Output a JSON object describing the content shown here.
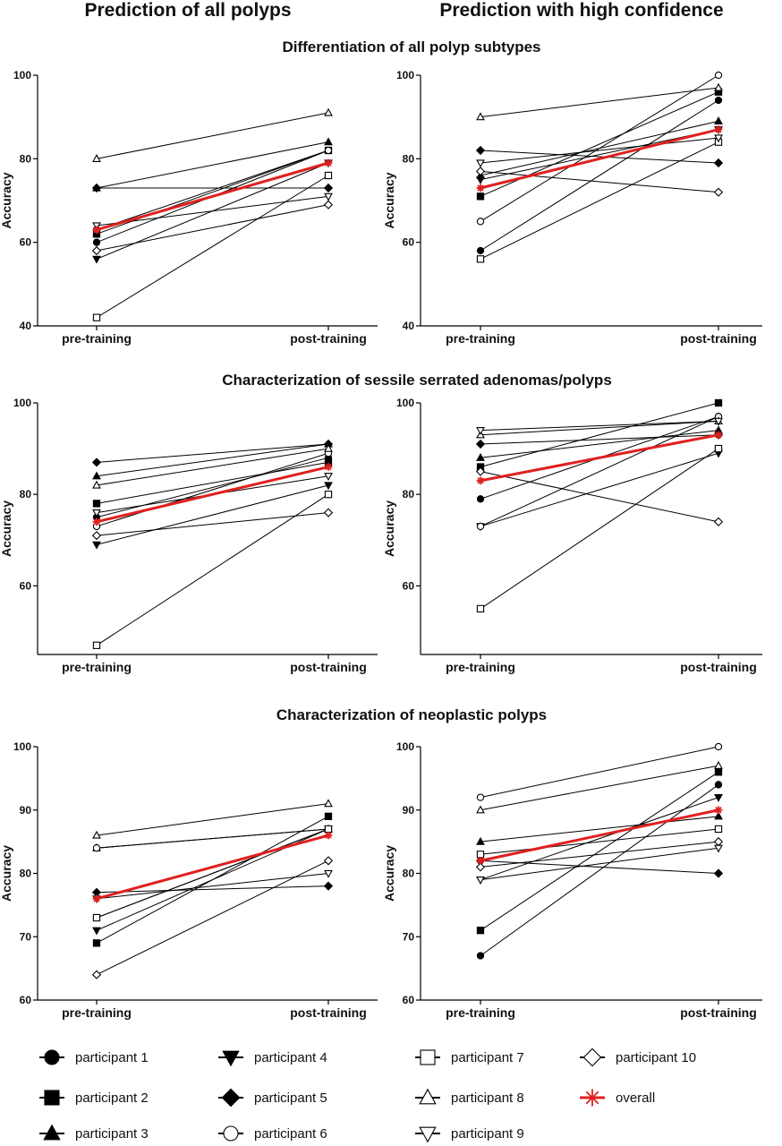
{
  "column_titles": [
    "Prediction of all polyps",
    "Prediction with high confidence"
  ],
  "row_titles": [
    "Differentiation of all polyp subtypes",
    "Characterization of sessile serrated adenomas/polyps",
    "Characterization of neoplastic polyps"
  ],
  "colors": {
    "participant": "#000000",
    "overall": "#e02020"
  },
  "legend": [
    {
      "name": "participant 1",
      "marker": "circle-filled"
    },
    {
      "name": "participant 2",
      "marker": "square-filled"
    },
    {
      "name": "participant 3",
      "marker": "triangle-up-filled"
    },
    {
      "name": "participant 4",
      "marker": "triangle-down-filled"
    },
    {
      "name": "participant 5",
      "marker": "diamond-filled"
    },
    {
      "name": "participant 6",
      "marker": "circle-open"
    },
    {
      "name": "participant 7",
      "marker": "square-open"
    },
    {
      "name": "participant 8",
      "marker": "triangle-up-open"
    },
    {
      "name": "participant 9",
      "marker": "triangle-down-open"
    },
    {
      "name": "participant 10",
      "marker": "diamond-open"
    },
    {
      "name": "overall",
      "marker": "asterisk-red"
    }
  ],
  "chart_data": [
    {
      "type": "line",
      "row": 0,
      "col": 0,
      "categories": [
        "pre-training",
        "post-training"
      ],
      "ylabel": "Accuracy",
      "ylim": [
        40,
        100
      ],
      "yticks": [
        40,
        60,
        80,
        100
      ],
      "series": [
        {
          "name": "participant 1",
          "values": [
            60,
            82
          ]
        },
        {
          "name": "participant 2",
          "values": [
            62,
            82
          ]
        },
        {
          "name": "participant 3",
          "values": [
            73,
            84
          ]
        },
        {
          "name": "participant 4",
          "values": [
            56,
            79
          ]
        },
        {
          "name": "participant 5",
          "values": [
            73,
            73
          ]
        },
        {
          "name": "participant 6",
          "values": [
            63,
            82
          ]
        },
        {
          "name": "participant 7",
          "values": [
            42,
            76
          ]
        },
        {
          "name": "participant 8",
          "values": [
            80,
            91
          ]
        },
        {
          "name": "participant 9",
          "values": [
            64,
            71
          ]
        },
        {
          "name": "participant 10",
          "values": [
            58,
            69
          ]
        },
        {
          "name": "overall",
          "values": [
            63,
            79
          ]
        }
      ]
    },
    {
      "type": "line",
      "row": 0,
      "col": 1,
      "categories": [
        "pre-training",
        "post-training"
      ],
      "ylabel": "Accuracy",
      "ylim": [
        40,
        100
      ],
      "yticks": [
        40,
        60,
        80,
        100
      ],
      "series": [
        {
          "name": "participant 1",
          "values": [
            58,
            94
          ]
        },
        {
          "name": "participant 2",
          "values": [
            71,
            96
          ]
        },
        {
          "name": "participant 3",
          "values": [
            76,
            89
          ]
        },
        {
          "name": "participant 4",
          "values": [
            75,
            87
          ]
        },
        {
          "name": "participant 5",
          "values": [
            82,
            79
          ]
        },
        {
          "name": "participant 6",
          "values": [
            65,
            100
          ]
        },
        {
          "name": "participant 7",
          "values": [
            56,
            84
          ]
        },
        {
          "name": "participant 8",
          "values": [
            90,
            97
          ]
        },
        {
          "name": "participant 9",
          "values": [
            79,
            85
          ]
        },
        {
          "name": "participant 10",
          "values": [
            77,
            72
          ]
        },
        {
          "name": "overall",
          "values": [
            73,
            87
          ]
        }
      ]
    },
    {
      "type": "line",
      "row": 1,
      "col": 0,
      "categories": [
        "pre-training",
        "post-training"
      ],
      "ylabel": "Accuracy",
      "ylim": [
        45,
        100
      ],
      "yticks": [
        60,
        80,
        100
      ],
      "series": [
        {
          "name": "participant 1",
          "values": [
            75,
            88
          ]
        },
        {
          "name": "participant 2",
          "values": [
            78,
            87
          ]
        },
        {
          "name": "participant 3",
          "values": [
            84,
            91
          ]
        },
        {
          "name": "participant 4",
          "values": [
            69,
            82
          ]
        },
        {
          "name": "participant 5",
          "values": [
            87,
            91
          ]
        },
        {
          "name": "participant 6",
          "values": [
            73,
            89
          ]
        },
        {
          "name": "participant 7",
          "values": [
            47,
            80
          ]
        },
        {
          "name": "participant 8",
          "values": [
            82,
            90
          ]
        },
        {
          "name": "participant 9",
          "values": [
            76,
            84
          ]
        },
        {
          "name": "participant 10",
          "values": [
            71,
            76
          ]
        },
        {
          "name": "overall",
          "values": [
            74,
            86
          ]
        }
      ]
    },
    {
      "type": "line",
      "row": 1,
      "col": 1,
      "categories": [
        "pre-training",
        "post-training"
      ],
      "ylabel": "Accuracy",
      "ylim": [
        45,
        100
      ],
      "yticks": [
        60,
        80,
        100
      ],
      "series": [
        {
          "name": "participant 1",
          "values": [
            79,
            97
          ]
        },
        {
          "name": "participant 2",
          "values": [
            86,
            100
          ]
        },
        {
          "name": "participant 3",
          "values": [
            88,
            94
          ]
        },
        {
          "name": "participant 4",
          "values": [
            73,
            89
          ]
        },
        {
          "name": "participant 5",
          "values": [
            91,
            93
          ]
        },
        {
          "name": "participant 6",
          "values": [
            73,
            97
          ]
        },
        {
          "name": "participant 7",
          "values": [
            55,
            90
          ]
        },
        {
          "name": "participant 8",
          "values": [
            93,
            96
          ]
        },
        {
          "name": "participant 9",
          "values": [
            94,
            96
          ]
        },
        {
          "name": "participant 10",
          "values": [
            85,
            74
          ]
        },
        {
          "name": "overall",
          "values": [
            83,
            93
          ]
        }
      ]
    },
    {
      "type": "line",
      "row": 2,
      "col": 0,
      "categories": [
        "pre-training",
        "post-training"
      ],
      "ylabel": "Accuracy",
      "ylim": [
        60,
        100
      ],
      "yticks": [
        60,
        70,
        80,
        90,
        100
      ],
      "series": [
        {
          "name": "participant 1",
          "values": [
            73,
            87
          ]
        },
        {
          "name": "participant 2",
          "values": [
            69,
            89
          ]
        },
        {
          "name": "participant 3",
          "values": [
            84,
            87
          ]
        },
        {
          "name": "participant 4",
          "values": [
            71,
            87
          ]
        },
        {
          "name": "participant 5",
          "values": [
            77,
            78
          ]
        },
        {
          "name": "participant 6",
          "values": [
            84,
            87
          ]
        },
        {
          "name": "participant 7",
          "values": [
            73,
            87
          ]
        },
        {
          "name": "participant 8",
          "values": [
            86,
            91
          ]
        },
        {
          "name": "participant 9",
          "values": [
            76,
            80
          ]
        },
        {
          "name": "participant 10",
          "values": [
            64,
            82
          ]
        },
        {
          "name": "overall",
          "values": [
            76,
            86
          ]
        }
      ]
    },
    {
      "type": "line",
      "row": 2,
      "col": 1,
      "categories": [
        "pre-training",
        "post-training"
      ],
      "ylabel": "Accuracy",
      "ylim": [
        60,
        100
      ],
      "yticks": [
        60,
        70,
        80,
        90,
        100
      ],
      "series": [
        {
          "name": "participant 1",
          "values": [
            67,
            94
          ]
        },
        {
          "name": "participant 2",
          "values": [
            71,
            96
          ]
        },
        {
          "name": "participant 3",
          "values": [
            85,
            89
          ]
        },
        {
          "name": "participant 4",
          "values": [
            79,
            92
          ]
        },
        {
          "name": "participant 5",
          "values": [
            82,
            80
          ]
        },
        {
          "name": "participant 6",
          "values": [
            92,
            100
          ]
        },
        {
          "name": "participant 7",
          "values": [
            83,
            87
          ]
        },
        {
          "name": "participant 8",
          "values": [
            90,
            97
          ]
        },
        {
          "name": "participant 9",
          "values": [
            79,
            84
          ]
        },
        {
          "name": "participant 10",
          "values": [
            81,
            85
          ]
        },
        {
          "name": "overall",
          "values": [
            82,
            90
          ]
        }
      ]
    }
  ]
}
